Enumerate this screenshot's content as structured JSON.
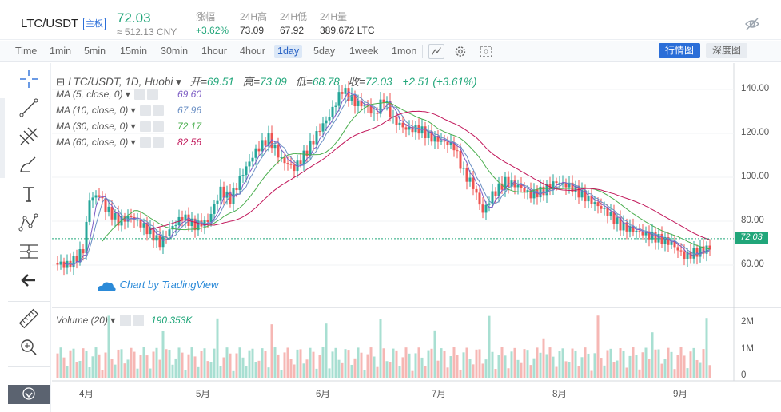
{
  "ticker": {
    "pair": "LTC/USDT",
    "board": "主板",
    "last": "72.03",
    "cny": "≈ 512.13 CNY",
    "stats": [
      {
        "label": "涨幅",
        "value": "+3.62%",
        "up": true
      },
      {
        "label": "24H高",
        "value": "73.09"
      },
      {
        "label": "24H低",
        "value": "67.92"
      },
      {
        "label": "24H量",
        "value": "389,672 LTC"
      }
    ]
  },
  "toolbar": {
    "intervals": [
      "Time",
      "1min",
      "5min",
      "15min",
      "30min",
      "1hour",
      "4hour",
      "1day",
      "5day",
      "1week",
      "1mon"
    ],
    "active_interval": "1day",
    "kline_button": "行情图",
    "depth_button": "深度图"
  },
  "legend": {
    "symbol": "LTC/USDT, 1D, Huobi",
    "open_label": "开=",
    "open": "69.51",
    "high_label": "高=",
    "high": "73.09",
    "low_label": "低=",
    "low": "68.78",
    "close_label": "收=",
    "close": "72.03",
    "change": "+2.51 (+3.61%)"
  },
  "ma": [
    {
      "label": "MA (5, close, 0)",
      "value": "69.60",
      "color": "#7c5cc4"
    },
    {
      "label": "MA (10, close, 0)",
      "value": "67.96",
      "color": "#6a8fc4"
    },
    {
      "label": "MA (30, close, 0)",
      "value": "72.17",
      "color": "#4caf50"
    },
    {
      "label": "MA (60, close, 0)",
      "value": "82.56",
      "color": "#c2185b"
    }
  ],
  "volume": {
    "label": "Volume (20)",
    "value": "190.353K"
  },
  "watermark": "Chart by TradingView",
  "price_axis": [
    "140.00",
    "120.00",
    "100.00",
    "80.00",
    "60.00"
  ],
  "volume_axis": [
    "2M",
    "1M",
    "0"
  ],
  "time_axis": [
    "4月",
    "5月",
    "6月",
    "7月",
    "8月",
    "9月"
  ],
  "last_price_tag": "72.03",
  "colors": {
    "up": "#26a69a",
    "down": "#ef5350",
    "accent": "#2b6ed8"
  },
  "chart_data": {
    "type": "candlestick",
    "ylim": [
      40,
      148
    ],
    "last_price": 72.03
  }
}
